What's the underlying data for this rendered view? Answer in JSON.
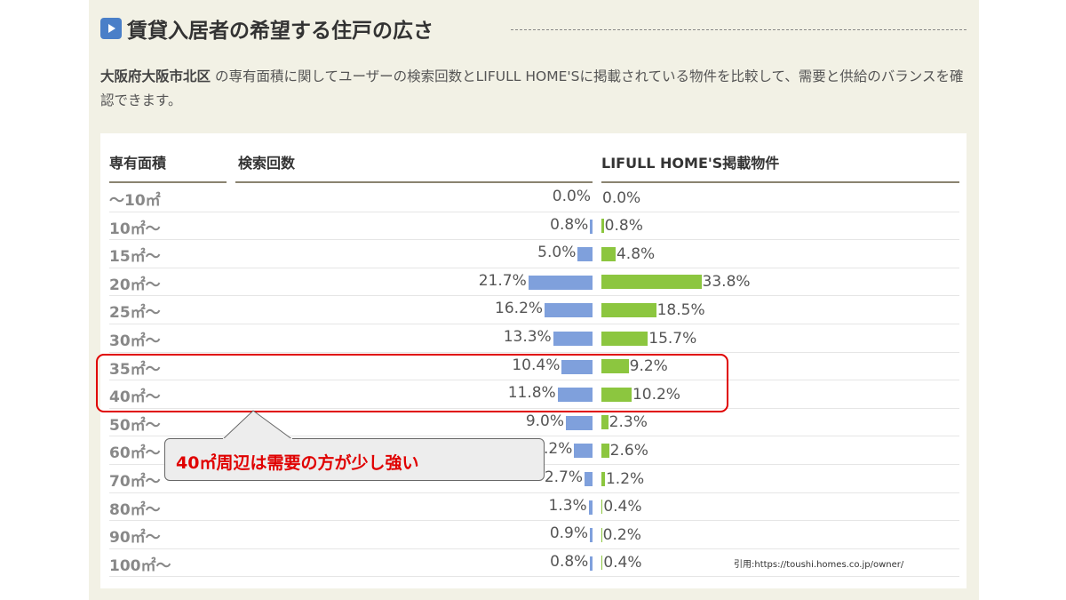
{
  "title": "賃貸入居者の希望する住戸の広さ",
  "description": {
    "region": "大阪府大阪市北区",
    "text": " の専有面積に関してユーザーの検索回数とLIFULL HOME'Sに掲載されている物件を比較して、需要と供給のバランスを確認できます。"
  },
  "table": {
    "headers": {
      "area": "専有面積",
      "search": "検索回数",
      "listing": "LIFULL HOME'S掲載物件"
    },
    "rows": [
      {
        "area": "〜10㎡",
        "search": "0.0%",
        "listing": "0.0%",
        "s": 0,
        "l": 0
      },
      {
        "area": "10㎡〜",
        "search": "0.8%",
        "listing": "0.8%",
        "s": 0.8,
        "l": 0.8
      },
      {
        "area": "15㎡〜",
        "search": "5.0%",
        "listing": "4.8%",
        "s": 5.0,
        "l": 4.8
      },
      {
        "area": "20㎡〜",
        "search": "21.7%",
        "listing": "33.8%",
        "s": 21.7,
        "l": 33.8
      },
      {
        "area": "25㎡〜",
        "search": "16.2%",
        "listing": "18.5%",
        "s": 16.2,
        "l": 18.5
      },
      {
        "area": "30㎡〜",
        "search": "13.3%",
        "listing": "15.7%",
        "s": 13.3,
        "l": 15.7
      },
      {
        "area": "35㎡〜",
        "search": "10.4%",
        "listing": "9.2%",
        "s": 10.4,
        "l": 9.2
      },
      {
        "area": "40㎡〜",
        "search": "11.8%",
        "listing": "10.2%",
        "s": 11.8,
        "l": 10.2
      },
      {
        "area": "50㎡〜",
        "search": "9.0%",
        "listing": "2.3%",
        "s": 9.0,
        "l": 2.3
      },
      {
        "area": "60㎡〜",
        "search": "6.2%",
        "listing": "2.6%",
        "s": 6.2,
        "l": 2.6
      },
      {
        "area": "70㎡〜",
        "search": "2.7%",
        "listing": "1.2%",
        "s": 2.7,
        "l": 1.2
      },
      {
        "area": "80㎡〜",
        "search": "1.3%",
        "listing": "0.4%",
        "s": 1.3,
        "l": 0.4
      },
      {
        "area": "90㎡〜",
        "search": "0.9%",
        "listing": "0.2%",
        "s": 0.9,
        "l": 0.2
      },
      {
        "area": "100㎡〜",
        "search": "0.8%",
        "listing": "0.4%",
        "s": 0.8,
        "l": 0.4
      }
    ]
  },
  "colors": {
    "search": "#7fa0dc",
    "listing": "#8cc63f",
    "highlight": "#e00000"
  },
  "callout": "40㎡周辺は需要の方が少し強い",
  "citation": "引用:https://toushi.homes.co.jp/owner/"
}
